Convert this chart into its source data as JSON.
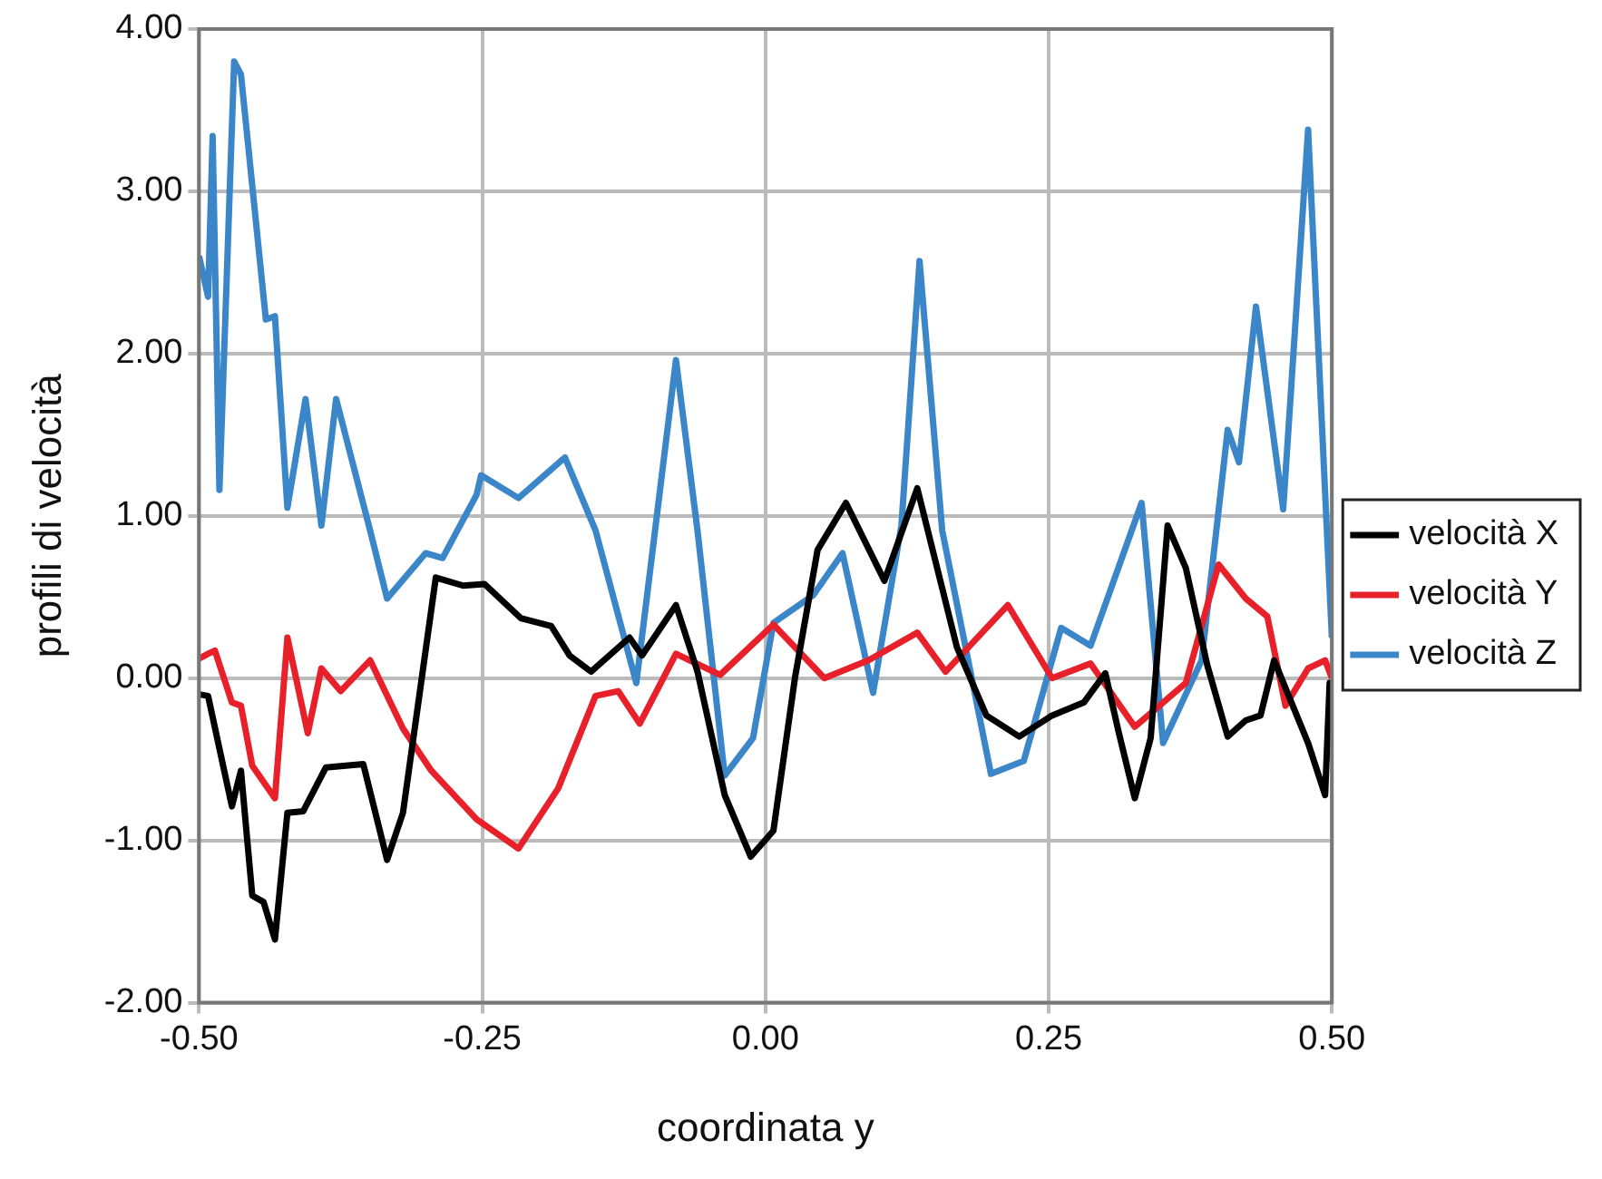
{
  "chart_data": {
    "type": "line",
    "xlabel": "coordinata y",
    "ylabel": "profili di velocità",
    "xlim": [
      -0.5,
      0.5
    ],
    "xticks": [
      {
        "value": -0.5,
        "label": "-0.50"
      },
      {
        "value": -0.25,
        "label": "-0.25"
      },
      {
        "value": 0,
        "label": "0.00"
      },
      {
        "value": 0.25,
        "label": "0.25"
      },
      {
        "value": 0.5,
        "label": "0.50"
      }
    ],
    "ylim": [
      -2,
      4
    ],
    "yticks": [
      {
        "value": -2,
        "label": "-2.00"
      },
      {
        "value": -1,
        "label": "-1.00"
      },
      {
        "value": 0,
        "label": "0.00"
      },
      {
        "value": 1,
        "label": "1.00"
      },
      {
        "value": 2,
        "label": "2.00"
      },
      {
        "value": 3,
        "label": "3.00"
      },
      {
        "value": 4,
        "label": "4.00"
      }
    ],
    "grid": true,
    "legend": "right",
    "marker": "none",
    "line_style": "solid",
    "series": [
      {
        "name": "velocità X",
        "color": "#000000",
        "x": [
          -0.5,
          -0.492,
          -0.471,
          -0.463,
          -0.453,
          -0.443,
          -0.433,
          -0.422,
          -0.408,
          -0.388,
          -0.355,
          -0.334,
          -0.32,
          -0.291,
          -0.267,
          -0.248,
          -0.216,
          -0.189,
          -0.173,
          -0.154,
          -0.12,
          -0.109,
          -0.079,
          -0.06,
          -0.036,
          -0.013,
          0.007,
          0.026,
          0.046,
          0.071,
          0.105,
          0.134,
          0.169,
          0.195,
          0.224,
          0.253,
          0.281,
          0.3,
          0.312,
          0.326,
          0.34,
          0.355,
          0.371,
          0.39,
          0.408,
          0.424,
          0.437,
          0.449,
          0.479,
          0.494,
          0.498,
          0.5
        ],
        "values": [
          -0.1,
          -0.11,
          -0.79,
          -0.57,
          -1.34,
          -1.38,
          -1.61,
          -0.83,
          -0.82,
          -0.55,
          -0.53,
          -1.12,
          -0.83,
          0.62,
          0.57,
          0.58,
          0.37,
          0.32,
          0.14,
          0.04,
          0.25,
          0.14,
          0.45,
          0.04,
          -0.72,
          -1.1,
          -0.94,
          0,
          0.79,
          1.08,
          0.6,
          1.17,
          0.19,
          -0.23,
          -0.36,
          -0.23,
          -0.15,
          0.03,
          -0.34,
          -0.74,
          -0.37,
          0.94,
          0.68,
          0.08,
          -0.36,
          -0.26,
          -0.23,
          0.11,
          -0.4,
          -0.72,
          -0.03,
          -0.1
        ]
      },
      {
        "name": "velocità Y",
        "color": "#e8202a",
        "x": [
          -0.5,
          -0.492,
          -0.486,
          -0.471,
          -0.463,
          -0.453,
          -0.433,
          -0.422,
          -0.404,
          -0.392,
          -0.375,
          -0.349,
          -0.32,
          -0.295,
          -0.255,
          -0.218,
          -0.183,
          -0.15,
          -0.13,
          -0.111,
          -0.079,
          -0.04,
          0.007,
          0.052,
          0.091,
          0.134,
          0.159,
          0.214,
          0.253,
          0.287,
          0.326,
          0.371,
          0.4,
          0.424,
          0.443,
          0.459,
          0.479,
          0.494,
          0.5
        ],
        "values": [
          0.12,
          0.15,
          0.17,
          -0.15,
          -0.17,
          -0.54,
          -0.74,
          0.25,
          -0.34,
          0.06,
          -0.08,
          0.11,
          -0.31,
          -0.57,
          -0.87,
          -1.05,
          -0.68,
          -0.11,
          -0.08,
          -0.28,
          0.15,
          0.02,
          0.33,
          0,
          0.11,
          0.28,
          0.04,
          0.45,
          0,
          0.09,
          -0.3,
          -0.03,
          0.7,
          0.49,
          0.38,
          -0.17,
          0.06,
          0.11,
          0
        ]
      },
      {
        "name": "velocità Z",
        "color": "#3a86c8",
        "x": [
          -0.5,
          -0.492,
          -0.488,
          -0.482,
          -0.469,
          -0.463,
          -0.441,
          -0.433,
          -0.422,
          -0.406,
          -0.392,
          -0.379,
          -0.349,
          -0.334,
          -0.3,
          -0.285,
          -0.255,
          -0.251,
          -0.218,
          -0.177,
          -0.15,
          -0.114,
          -0.079,
          -0.06,
          -0.036,
          -0.011,
          0.007,
          0.042,
          0.068,
          0.095,
          0.12,
          0.136,
          0.156,
          0.199,
          0.228,
          0.261,
          0.287,
          0.332,
          0.351,
          0.385,
          0.398,
          0.408,
          0.418,
          0.433,
          0.457,
          0.479,
          0.5
        ],
        "values": [
          2.6,
          2.35,
          3.34,
          1.16,
          3.8,
          3.72,
          2.21,
          2.23,
          1.05,
          1.72,
          0.94,
          1.72,
          0.91,
          0.49,
          0.77,
          0.74,
          1.13,
          1.25,
          1.11,
          1.36,
          0.91,
          -0.03,
          1.96,
          0.91,
          -0.6,
          -0.37,
          0.34,
          0.51,
          0.77,
          -0.09,
          0.94,
          2.57,
          0.91,
          -0.59,
          -0.51,
          0.31,
          0.2,
          1.08,
          -0.4,
          0.11,
          0.91,
          1.53,
          1.33,
          2.29,
          1.04,
          3.38,
          0.25
        ]
      }
    ]
  }
}
